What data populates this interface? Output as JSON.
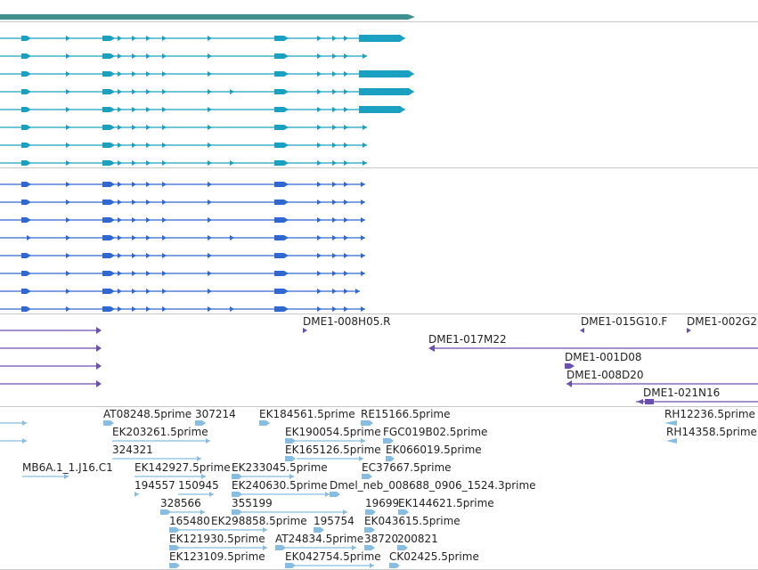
{
  "colors": {
    "genome_bar": "#3f8f8f",
    "transcript_a": "#1aa0c0",
    "transcript_b": "#2f68d0",
    "clone": "#6a4fb0",
    "est": "#86bde0",
    "separator": "#c8c8c8",
    "text": "#222222"
  },
  "tracks": {
    "clone_labels": [
      "DME1-008H05.R",
      "DME1-015G10.F",
      "DME1-002G2",
      "DME1-017M22",
      "DME1-001D08",
      "DME1-008D20",
      "DME1-021N16"
    ],
    "est_labels": [
      "AT08248.5prime",
      "307214",
      "EK184561.5prime",
      "RE15166.5prime",
      "RH12236.5prime",
      "EK203261.5prime",
      "EK190054.5prime",
      "FGC019B02.5prime",
      "RH14358.5prime",
      "324321",
      "EK165126.5prime",
      "EK066019.5prime",
      "MB6A.1_1.J16.C1",
      "EK142927.5prime",
      "EK233045.5prime",
      "EC37667.5prime",
      "194557",
      "150945",
      "EK240630.5prime",
      "Dmel_neb_008688_0906_1524.3prime",
      "328566",
      "355199",
      "19699",
      "EK144621.5prime",
      "165480",
      "EK298858.5prime",
      "195754",
      "EK043615.5prime",
      "EK121930.5prime",
      "AT24834.5prime",
      "38720",
      "200821",
      "EK123109.5prime",
      "EK042754.5prime",
      "CK02425.5prime"
    ]
  }
}
